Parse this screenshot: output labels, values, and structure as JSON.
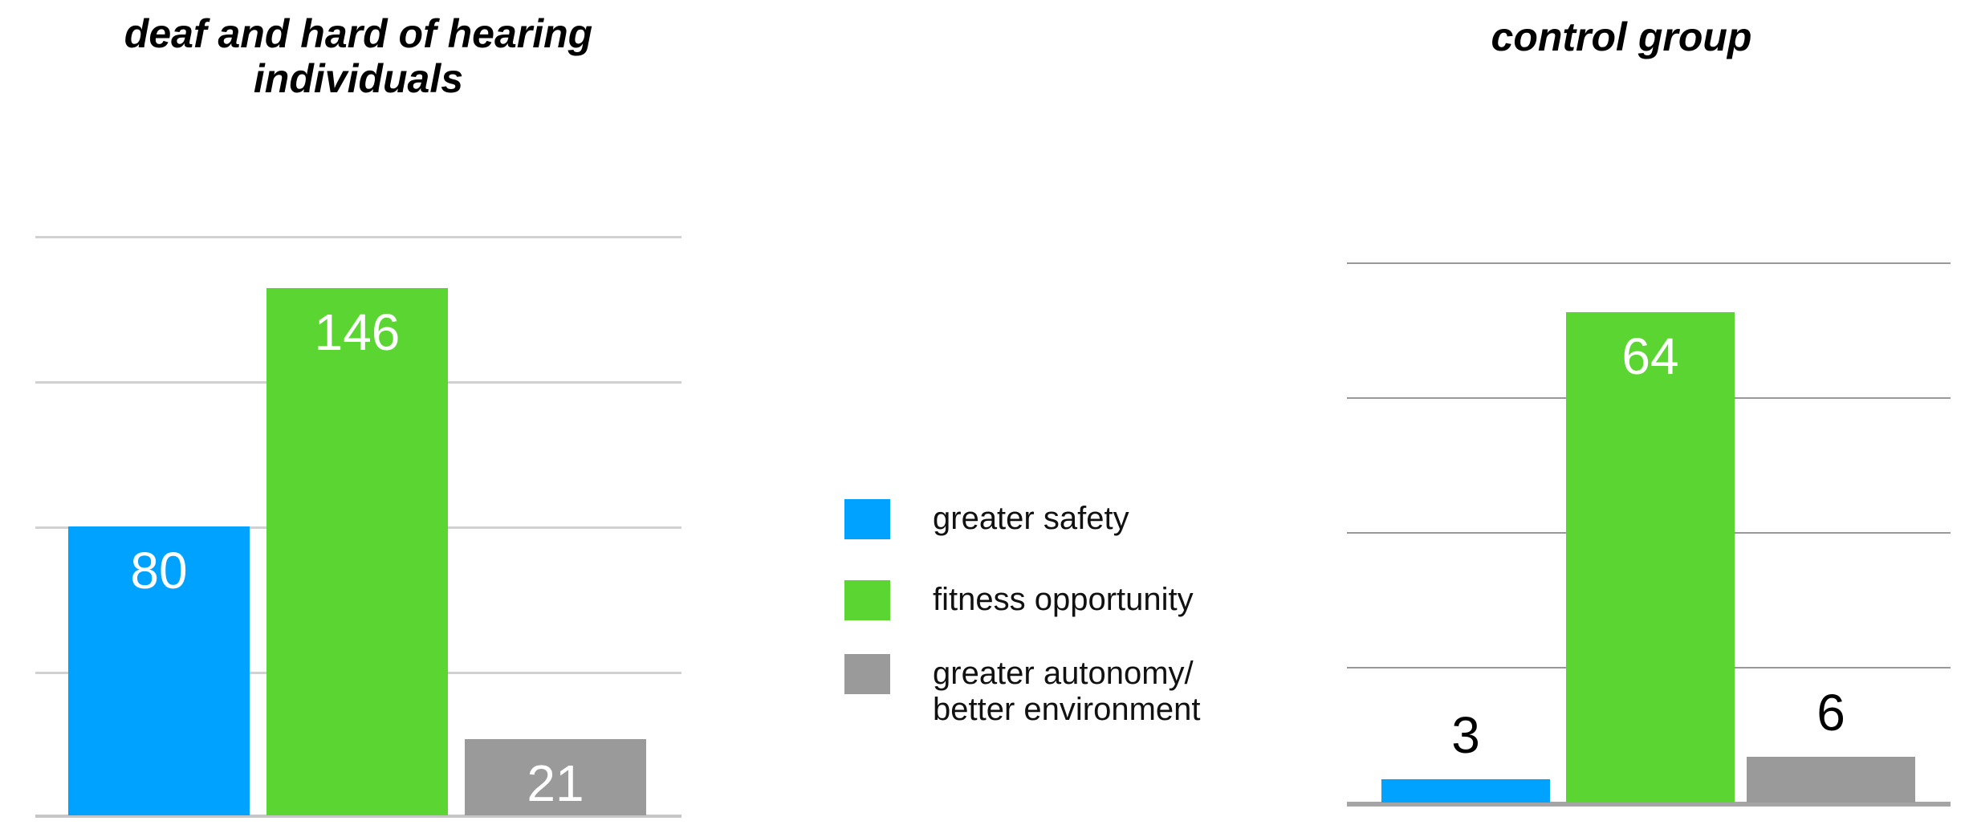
{
  "page": {
    "background": "#FFFFFF"
  },
  "legend": {
    "items": [
      {
        "label": "greater safety",
        "color": "#00A2FF"
      },
      {
        "label": "fitness opportunity",
        "color": "#5AD531"
      },
      {
        "label": "greater autonomy/\nbetter environment",
        "color": "#9A9A9A"
      }
    ]
  },
  "chart_data": [
    {
      "type": "bar",
      "title": "deaf and hard of hearing\nindividuals",
      "categories": [
        "greater safety",
        "fitness opportunity",
        "greater autonomy/better environment"
      ],
      "values": [
        80,
        146,
        21
      ],
      "colors": [
        "#00A2FF",
        "#5AD531",
        "#9A9A9A"
      ],
      "label_inside": [
        true,
        true,
        true
      ],
      "value_label_color_inside": "#FFFFFF",
      "value_label_color_outside": "#000000",
      "xlabel": "",
      "ylabel": "",
      "ylim": [
        0,
        180
      ],
      "gridline_values": [
        40,
        80,
        120,
        160
      ],
      "grid": "on",
      "axis_tick_labels": "none",
      "legend_position": "center, between the two charts"
    },
    {
      "type": "bar",
      "title": "control group",
      "categories": [
        "greater safety",
        "fitness opportunity",
        "greater autonomy/better environment"
      ],
      "values": [
        3,
        64,
        6
      ],
      "colors": [
        "#00A2FF",
        "#5AD531",
        "#9A9A9A"
      ],
      "label_inside": [
        false,
        true,
        false
      ],
      "value_label_color_inside": "#FFFFFF",
      "value_label_color_outside": "#000000",
      "xlabel": "",
      "ylabel": "",
      "ylim": [
        0,
        71
      ],
      "gridline_values": [
        17.7,
        35.4,
        53.1,
        70.8
      ],
      "grid": "on",
      "axis_tick_labels": "none",
      "legend_position": "center, between the two charts"
    }
  ]
}
